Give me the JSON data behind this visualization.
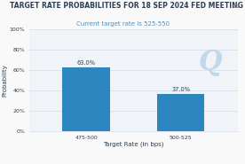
{
  "title": "TARGET RATE PROBABILITIES FOR 18 SEP 2024 FED MEETING",
  "subtitle": "Current target rate is 525-550",
  "categories": [
    "475-500",
    "500-525"
  ],
  "values": [
    63.0,
    37.0
  ],
  "bar_color": "#2e86c1",
  "xlabel": "Target Rate (in bps)",
  "ylabel": "Probability",
  "ylim": [
    0,
    100
  ],
  "yticks": [
    0,
    20,
    40,
    60,
    80,
    100
  ],
  "ytick_labels": [
    "0%",
    "20%",
    "40%",
    "60%",
    "80%",
    "100%"
  ],
  "title_fontsize": 5.5,
  "subtitle_fontsize": 5.0,
  "axis_label_fontsize": 5.0,
  "tick_fontsize": 4.5,
  "value_label_fontsize": 4.8,
  "background_color": "#f9f9f9",
  "plot_bg_color": "#f0f4f8",
  "grid_color": "#d0dde8",
  "watermark_text": "Q",
  "watermark_color": "#b8d4e8",
  "title_color": "#2c3e50",
  "subtitle_color": "#4a90c4",
  "bar_width": 0.5,
  "menu_color": "#888888"
}
